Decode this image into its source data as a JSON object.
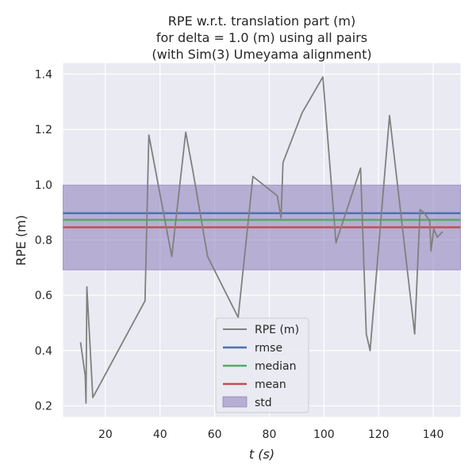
{
  "chart_data": {
    "type": "line",
    "title_lines": [
      "RPE w.r.t. translation part (m)",
      "for delta = 1.0 (m) using all pairs",
      "(with Sim(3) Umeyama alignment)"
    ],
    "xlabel": "t (s)",
    "ylabel": "RPE (m)",
    "xlim": [
      4.5,
      150
    ],
    "ylim": [
      0.16,
      1.44
    ],
    "xticks": [
      20,
      40,
      60,
      80,
      100,
      120,
      140
    ],
    "yticks": [
      0.2,
      0.4,
      0.6,
      0.8,
      1.0,
      1.2,
      1.4
    ],
    "xtick_labels": [
      "20",
      "40",
      "60",
      "80",
      "100",
      "120",
      "140"
    ],
    "ytick_labels": [
      "0.2",
      "0.4",
      "0.6",
      "0.8",
      "1.0",
      "1.2",
      "1.4"
    ],
    "grid": true,
    "legend_position": "lower center",
    "series": [
      {
        "name": "RPE (m)",
        "color": "#808080",
        "x": [
          10.9,
          12.6,
          12.9,
          13.2,
          15.4,
          34.5,
          35.9,
          44.3,
          49.4,
          52.0,
          57.4,
          68.6,
          74.0,
          82.9,
          84.3,
          85.0,
          92.0,
          99.6,
          104.4,
          113.4,
          115.5,
          116.9,
          124.0,
          133.2,
          135.2,
          136.5,
          138.7,
          139.2,
          140.2,
          141.5,
          143.5
        ],
        "y": [
          0.43,
          0.31,
          0.21,
          0.63,
          0.23,
          0.58,
          1.18,
          0.74,
          1.19,
          1.05,
          0.74,
          0.52,
          1.03,
          0.96,
          0.88,
          1.08,
          1.26,
          1.39,
          0.79,
          1.06,
          0.46,
          0.4,
          1.25,
          0.46,
          0.91,
          0.9,
          0.87,
          0.76,
          0.84,
          0.81,
          0.83
        ]
      },
      {
        "name": "rmse",
        "color": "#4c72b0",
        "value": 0.897
      },
      {
        "name": "median",
        "color": "#55a868",
        "value": 0.873
      },
      {
        "name": "mean",
        "color": "#c44e52",
        "value": 0.846
      },
      {
        "name": "std",
        "color": "#8172b3",
        "band": [
          0.692,
          0.999
        ]
      }
    ]
  }
}
